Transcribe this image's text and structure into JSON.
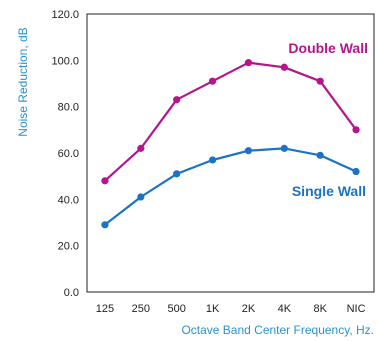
{
  "chart_data": {
    "type": "line",
    "title": "",
    "xlabel": "Octave Band Center Frequency, Hz.",
    "ylabel": "Noise Reduction, dB",
    "ylim": [
      0,
      120
    ],
    "y_ticks": [
      "0.0",
      "20.0",
      "40.0",
      "60.0",
      "80.0",
      "100.0",
      "120.0"
    ],
    "categories": [
      "125",
      "250",
      "500",
      "1K",
      "2K",
      "4K",
      "8K",
      "NIC"
    ],
    "grid": false,
    "legend": "direct labels",
    "series": [
      {
        "name": "Double Wall",
        "color": "#b5158c",
        "values": [
          48,
          62,
          83,
          91,
          99,
          97,
          91,
          70
        ]
      },
      {
        "name": "Single Wall",
        "color": "#1a73c4",
        "values": [
          29,
          41,
          51,
          57,
          61,
          62,
          59,
          52
        ]
      }
    ]
  }
}
